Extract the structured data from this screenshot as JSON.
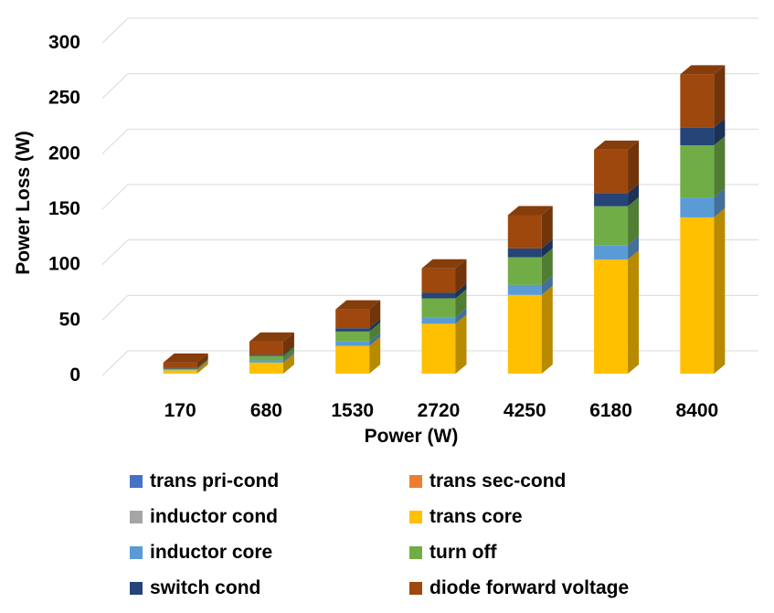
{
  "chart_data": {
    "type": "bar",
    "stacked": true,
    "three_d": true,
    "xlabel": "Power (W)",
    "ylabel": "Power Loss (W)",
    "ylim": [
      0,
      300
    ],
    "yticks": [
      0,
      50,
      100,
      150,
      200,
      250,
      300
    ],
    "grid": true,
    "legend_position": "bottom",
    "categories": [
      "170",
      "680",
      "1530",
      "2720",
      "4250",
      "6180",
      "8400"
    ],
    "series": [
      {
        "name": "trans pri-cond",
        "color": "#4472C4",
        "values": [
          0,
          0,
          0,
          0,
          0,
          0,
          0
        ]
      },
      {
        "name": "trans sec-cond",
        "color": "#ED7D31",
        "values": [
          0,
          0,
          0,
          0,
          0,
          0,
          0
        ]
      },
      {
        "name": "inductor cond",
        "color": "#A5A5A5",
        "values": [
          0,
          0,
          0,
          0,
          0,
          0,
          0
        ]
      },
      {
        "name": "trans core",
        "color": "#FFC000",
        "values": [
          3,
          10,
          25,
          45,
          71,
          103,
          141
        ]
      },
      {
        "name": "inductor core",
        "color": "#5B9BD5",
        "values": [
          0.5,
          2,
          4,
          6,
          9,
          13,
          18
        ]
      },
      {
        "name": "turn off",
        "color": "#70AD47",
        "values": [
          1,
          4,
          9,
          17,
          25,
          35,
          47
        ]
      },
      {
        "name": "switch cond",
        "color": "#264478",
        "values": [
          0.5,
          1,
          3,
          5,
          8,
          12,
          16
        ]
      },
      {
        "name": "diode forward voltage",
        "color": "#9E480E",
        "values": [
          5,
          12,
          17,
          22,
          30,
          39,
          48
        ]
      }
    ]
  },
  "legend_order": [
    "trans pri-cond",
    "trans sec-cond",
    "inductor cond",
    "trans core",
    "inductor core",
    "turn off",
    "switch cond",
    "diode forward voltage"
  ]
}
